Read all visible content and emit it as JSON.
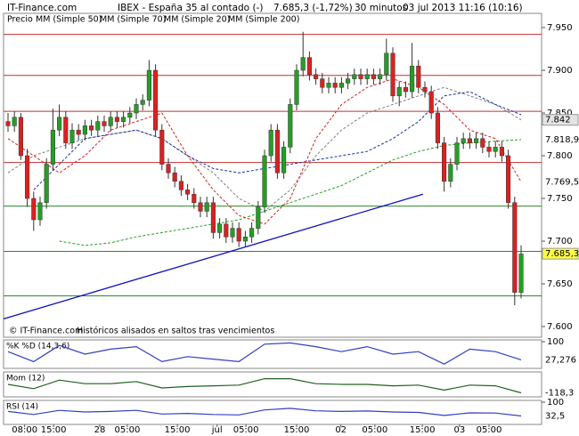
{
  "chart_data": {
    "type": "candlestick",
    "header": {
      "site": "IT-Finance.com",
      "instrument": "IBEX - España 35 al contado (-)",
      "last": "7.685,3 (-1,72%)",
      "interval": "30 minutos",
      "datetime": "03 jul 2013 11:16 (10:16)"
    },
    "legend_prefix": "Precio",
    "watermark": [
      "© IT-Finance.com",
      "Históricos alisados en saltos tras vencimientos"
    ],
    "ylim": [
      7.6,
      7.95
    ],
    "yticks": [
      {
        "value": 7.95,
        "label": "7.950"
      },
      {
        "value": 7.9,
        "label": "7.900"
      },
      {
        "value": 7.85,
        "label": "7.850"
      },
      {
        "value": 7.8,
        "label": "7.800"
      },
      {
        "value": 7.75,
        "label": "7.750"
      },
      {
        "value": 7.7,
        "label": "7.700"
      },
      {
        "value": 7.65,
        "label": "7.650"
      },
      {
        "value": 7.6,
        "label": "7.600"
      }
    ],
    "xticks": [
      {
        "value": 2.6,
        "label": "08:00"
      },
      {
        "value": 7.1,
        "label": "15:00"
      },
      {
        "value": 14.3,
        "label": "28"
      },
      {
        "value": 18.6,
        "label": "05:00"
      },
      {
        "value": 26.4,
        "label": "15:00"
      },
      {
        "value": 32.6,
        "label": "jul"
      },
      {
        "value": 37.1,
        "label": "05:00"
      },
      {
        "value": 45,
        "label": "15:00"
      },
      {
        "value": 51.9,
        "label": "02"
      },
      {
        "value": 57.2,
        "label": "05:00"
      },
      {
        "value": 64.6,
        "label": "15:00"
      },
      {
        "value": 70.4,
        "label": "03"
      },
      {
        "value": 75,
        "label": "05:00"
      }
    ],
    "up_color": "#22a022",
    "down_color": "#dd2020",
    "candles": [
      [
        7.84,
        7.85,
        7.828,
        7.835
      ],
      [
        7.835,
        7.852,
        7.828,
        7.845
      ],
      [
        7.845,
        7.85,
        7.795,
        7.8
      ],
      [
        7.8,
        7.808,
        7.74,
        7.75
      ],
      [
        7.75,
        7.758,
        7.712,
        7.725
      ],
      [
        7.725,
        7.752,
        7.718,
        7.745
      ],
      [
        7.745,
        7.797,
        7.738,
        7.79
      ],
      [
        7.79,
        7.855,
        7.783,
        7.83
      ],
      [
        7.83,
        7.86,
        7.823,
        7.845
      ],
      [
        7.845,
        7.852,
        7.808,
        7.815
      ],
      [
        7.815,
        7.838,
        7.808,
        7.83
      ],
      [
        7.83,
        7.837,
        7.818,
        7.825
      ],
      [
        7.825,
        7.842,
        7.818,
        7.835
      ],
      [
        7.835,
        7.842,
        7.823,
        7.83
      ],
      [
        7.83,
        7.847,
        7.823,
        7.84
      ],
      [
        7.84,
        7.847,
        7.828,
        7.835
      ],
      [
        7.835,
        7.852,
        7.828,
        7.845
      ],
      [
        7.845,
        7.852,
        7.833,
        7.84
      ],
      [
        7.84,
        7.852,
        7.833,
        7.845
      ],
      [
        7.845,
        7.857,
        7.838,
        7.85
      ],
      [
        7.85,
        7.867,
        7.843,
        7.86
      ],
      [
        7.86,
        7.872,
        7.853,
        7.865
      ],
      [
        7.865,
        7.912,
        7.858,
        7.9
      ],
      [
        7.9,
        7.907,
        7.823,
        7.83
      ],
      [
        7.83,
        7.837,
        7.783,
        7.79
      ],
      [
        7.79,
        7.797,
        7.773,
        7.78
      ],
      [
        7.78,
        7.787,
        7.763,
        7.77
      ],
      [
        7.77,
        7.777,
        7.753,
        7.76
      ],
      [
        7.76,
        7.767,
        7.748,
        7.755
      ],
      [
        7.755,
        7.762,
        7.738,
        7.745
      ],
      [
        7.745,
        7.752,
        7.728,
        7.735
      ],
      [
        7.735,
        7.752,
        7.728,
        7.745
      ],
      [
        7.745,
        7.752,
        7.703,
        7.71
      ],
      [
        7.71,
        7.727,
        7.703,
        7.72
      ],
      [
        7.72,
        7.727,
        7.698,
        7.705
      ],
      [
        7.705,
        7.722,
        7.698,
        7.715
      ],
      [
        7.715,
        7.722,
        7.693,
        7.7
      ],
      [
        7.7,
        7.712,
        7.693,
        7.705
      ],
      [
        7.705,
        7.722,
        7.698,
        7.715
      ],
      [
        7.715,
        7.747,
        7.708,
        7.74
      ],
      [
        7.74,
        7.807,
        7.733,
        7.8
      ],
      [
        7.8,
        7.837,
        7.793,
        7.83
      ],
      [
        7.83,
        7.837,
        7.773,
        7.78
      ],
      [
        7.78,
        7.817,
        7.773,
        7.81
      ],
      [
        7.81,
        7.867,
        7.803,
        7.86
      ],
      [
        7.86,
        7.907,
        7.853,
        7.9
      ],
      [
        7.9,
        7.945,
        7.893,
        7.915
      ],
      [
        7.915,
        7.922,
        7.888,
        7.895
      ],
      [
        7.895,
        7.902,
        7.883,
        7.89
      ],
      [
        7.89,
        7.897,
        7.873,
        7.88
      ],
      [
        7.88,
        7.892,
        7.873,
        7.885
      ],
      [
        7.885,
        7.892,
        7.873,
        7.88
      ],
      [
        7.88,
        7.892,
        7.873,
        7.885
      ],
      [
        7.885,
        7.897,
        7.878,
        7.89
      ],
      [
        7.89,
        7.902,
        7.883,
        7.895
      ],
      [
        7.895,
        7.902,
        7.883,
        7.89
      ],
      [
        7.89,
        7.902,
        7.883,
        7.895
      ],
      [
        7.895,
        7.902,
        7.883,
        7.89
      ],
      [
        7.89,
        7.902,
        7.883,
        7.895
      ],
      [
        7.895,
        7.937,
        7.888,
        7.92
      ],
      [
        7.92,
        7.927,
        7.863,
        7.87
      ],
      [
        7.87,
        7.887,
        7.858,
        7.88
      ],
      [
        7.88,
        7.887,
        7.868,
        7.875
      ],
      [
        7.875,
        7.932,
        7.868,
        7.905
      ],
      [
        7.905,
        7.912,
        7.873,
        7.88
      ],
      [
        7.88,
        7.887,
        7.868,
        7.875
      ],
      [
        7.875,
        7.882,
        7.843,
        7.85
      ],
      [
        7.85,
        7.857,
        7.808,
        7.815
      ],
      [
        7.815,
        7.822,
        7.758,
        7.77
      ],
      [
        7.77,
        7.797,
        7.763,
        7.79
      ],
      [
        7.79,
        7.822,
        7.783,
        7.815
      ],
      [
        7.815,
        7.827,
        7.808,
        7.82
      ],
      [
        7.82,
        7.827,
        7.808,
        7.815
      ],
      [
        7.815,
        7.827,
        7.808,
        7.82
      ],
      [
        7.82,
        7.827,
        7.803,
        7.81
      ],
      [
        7.81,
        7.817,
        7.798,
        7.805
      ],
      [
        7.805,
        7.817,
        7.798,
        7.81
      ],
      [
        7.81,
        7.817,
        7.793,
        7.8
      ],
      [
        7.8,
        7.807,
        7.738,
        7.745
      ],
      [
        7.745,
        7.752,
        7.625,
        7.64
      ],
      [
        7.64,
        7.695,
        7.633,
        7.685
      ]
    ],
    "ma_x": [
      0,
      4,
      8,
      12,
      16,
      20,
      24,
      28,
      32,
      36,
      40,
      44,
      48,
      52,
      56,
      60,
      64,
      68,
      72,
      76,
      80
    ],
    "series": [
      {
        "name": "MM (Simple 50)",
        "color": "#808080",
        "values": [
          7.78,
          7.8,
          7.81,
          7.82,
          7.825,
          7.83,
          7.82,
          7.8,
          7.78,
          7.75,
          7.735,
          7.76,
          7.8,
          7.83,
          7.85,
          7.86,
          7.87,
          7.88,
          7.87,
          7.86,
          7.842
        ]
      },
      {
        "name": "MM (Simple 70)",
        "color": "#1a2fa8",
        "values": [
          null,
          7.76,
          7.79,
          7.82,
          7.825,
          7.83,
          7.82,
          7.8,
          7.785,
          7.78,
          7.785,
          7.79,
          7.795,
          7.8,
          7.805,
          7.82,
          7.84,
          7.87,
          7.875,
          7.86,
          7.848
        ]
      },
      {
        "name": "MM (Simple 20)",
        "color": "#d02020",
        "values": [
          7.82,
          7.8,
          7.78,
          7.8,
          7.83,
          7.84,
          7.85,
          7.8,
          7.76,
          7.73,
          7.72,
          7.75,
          7.82,
          7.86,
          7.88,
          7.89,
          7.88,
          7.86,
          7.83,
          7.82,
          7.7695
        ]
      },
      {
        "name": "MM (Simple 200)",
        "color": "#22a022",
        "values": [
          null,
          null,
          7.7,
          7.695,
          7.698,
          7.705,
          7.71,
          7.715,
          7.72,
          7.725,
          7.735,
          7.745,
          7.755,
          7.765,
          7.78,
          7.795,
          7.805,
          7.812,
          7.815,
          7.817,
          7.8189
        ]
      }
    ],
    "hlines": [
      {
        "value": 7.942,
        "color": "#c03030"
      },
      {
        "value": 7.894,
        "color": "#c03030"
      },
      {
        "value": 7.852,
        "color": "#c03030"
      },
      {
        "value": 7.792,
        "color": "#c03030"
      },
      {
        "value": 7.741,
        "color": "#2a8a2a"
      },
      {
        "value": 7.688,
        "color": "#2a8a2a"
      },
      {
        "value": 7.636,
        "color": "#2a8a2a"
      }
    ],
    "trendline": {
      "x": [
        -0.7,
        64.7
      ],
      "values": [
        7.609,
        7.755
      ],
      "color": "#1010c0"
    },
    "tags": [
      {
        "value": 7.842,
        "bg": "#e4e4e4",
        "fg": "#444444"
      },
      {
        "value": 7.8189,
        "label": "7.818,9",
        "bg": "#ffffff",
        "fg": "#22a022"
      },
      {
        "value": 7.7695,
        "label": "7.769,5",
        "bg": "#ffffff",
        "fg": "#d02020"
      },
      {
        "value": 7.6853,
        "label": "7.685,3",
        "bg": "#ffff40",
        "fg": "#000000"
      }
    ],
    "indicators": [
      {
        "name": "%K %D (14,3,6)",
        "ylim": [
          0,
          100
        ],
        "yticks": [
          100
        ],
        "color": "#3040c0",
        "values": [
          60,
          20,
          85,
          50,
          70,
          80,
          20,
          40,
          30,
          20,
          90,
          95,
          80,
          60,
          80,
          50,
          60,
          10,
          70,
          60,
          27.276
        ],
        "tag": {
          "value": 27.276,
          "label": "27,276"
        }
      },
      {
        "name": "Mom (12)",
        "ylim": [
          -150,
          150
        ],
        "yticks": [],
        "color": "#206020",
        "values": [
          0,
          -60,
          60,
          10,
          10,
          40,
          -50,
          -30,
          -20,
          -10,
          80,
          80,
          10,
          0,
          0,
          -20,
          -10,
          -80,
          -10,
          -20,
          -118.3
        ],
        "tag": {
          "value": -118.3,
          "label": "-118,3"
        }
      },
      {
        "name": "RSI (14)",
        "ylim": [
          0,
          100
        ],
        "yticks": [
          100
        ],
        "color": "#3040c0",
        "values": [
          55,
          40,
          60,
          52,
          55,
          60,
          42,
          45,
          40,
          38,
          62,
          70,
          58,
          55,
          57,
          52,
          50,
          35,
          48,
          47,
          32.5
        ],
        "tag": {
          "value": 32.5,
          "label": "32,5"
        }
      }
    ]
  }
}
